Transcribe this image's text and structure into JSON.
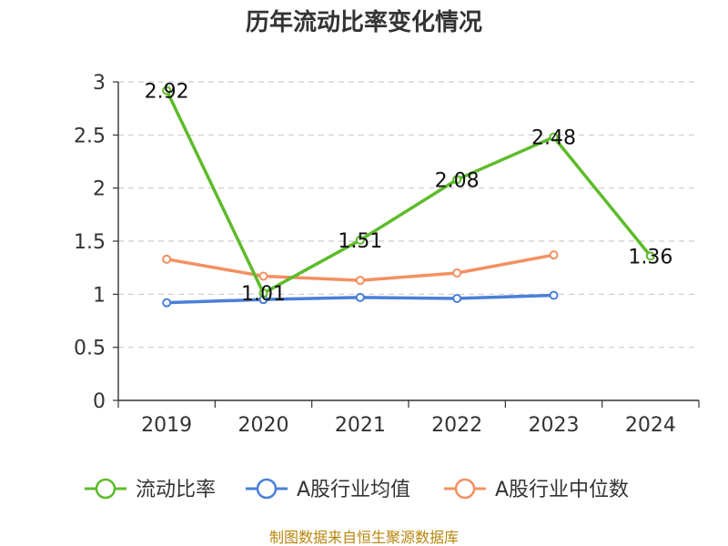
{
  "chart_data": {
    "type": "line",
    "title": "历年流动比率变化情况",
    "categories": [
      "2019",
      "2020",
      "2021",
      "2022",
      "2023",
      "2024"
    ],
    "ylim": [
      0,
      3
    ],
    "yticks": [
      "0",
      "0.5",
      "1",
      "1.5",
      "2",
      "2.5",
      "3"
    ],
    "grid": true,
    "legend_position": "bottom",
    "series": [
      {
        "name": "流动比率",
        "color": "#5dbb2a",
        "values": [
          2.92,
          1.01,
          1.51,
          2.08,
          2.48,
          1.36
        ],
        "labels": [
          "2.92",
          "1.01",
          "1.51",
          "2.08",
          "2.48",
          "1.36"
        ],
        "show_labels": true
      },
      {
        "name": "A股行业均值",
        "color": "#4a7fd8",
        "values": [
          0.92,
          0.95,
          0.97,
          0.96,
          0.99,
          null
        ],
        "show_labels": false
      },
      {
        "name": "A股行业中位数",
        "color": "#f39062",
        "values": [
          1.33,
          1.17,
          1.13,
          1.2,
          1.37,
          null
        ],
        "show_labels": false
      }
    ]
  },
  "source_text": "制图数据来自恒生聚源数据库"
}
